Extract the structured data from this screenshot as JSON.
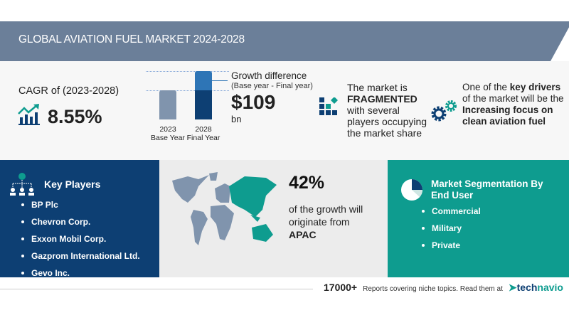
{
  "header": {
    "title": "GLOBAL AVIATION FUEL MARKET 2024-2028"
  },
  "cagr": {
    "label": "CAGR of (2023-2028)",
    "value": "8.55%",
    "icon": "growth-chart-icon"
  },
  "growth_chart": {
    "bars": [
      {
        "year": "2023",
        "label": "Base Year"
      },
      {
        "year": "2028",
        "label": "Final Year"
      }
    ],
    "colors": {
      "base": "#8094ad",
      "final_top": "#2e75b6",
      "final_bottom": "#0d3f73"
    }
  },
  "growth": {
    "title": "Growth difference",
    "subtitle": "(Base year - Final year)",
    "value": "$109",
    "unit": "bn"
  },
  "market": {
    "line1": "The market is",
    "bold": "FRAGMENTED",
    "line2": "with several",
    "line3": "players occupying",
    "line4": "the market share",
    "icon": "fragmented-blocks-icon"
  },
  "drivers": {
    "line1_pre": "One of the ",
    "line1_bold": "key drivers",
    "line2": "of the market will be the",
    "bold1": "Increasing focus on",
    "bold2": "clean aviation fuel",
    "icon": "gears-icon"
  },
  "key_players": {
    "title": "Key Players",
    "icon": "org-chart-icon",
    "items": [
      "BP Plc",
      "Chevron Corp.",
      "Exxon Mobil Corp.",
      "Gazprom International Ltd.",
      "Gevo Inc."
    ]
  },
  "region": {
    "percent": "42%",
    "line1": "of the growth will",
    "line2": "originate from",
    "region": "APAC",
    "icon": "world-map-icon"
  },
  "segmentation": {
    "title1": "Market Segmentation By",
    "title2": "End User",
    "icon": "pie-chart-icon",
    "items": [
      "Commercial",
      "Military",
      "Private"
    ]
  },
  "footer": {
    "count": "17000+",
    "text": "Reports covering niche topics. Read them at",
    "brand_a": "tech",
    "brand_b": "navio"
  },
  "colors": {
    "header": "#6b7f99",
    "navy": "#0d3f73",
    "teal": "#0e9c8f",
    "gray": "#ececec"
  }
}
